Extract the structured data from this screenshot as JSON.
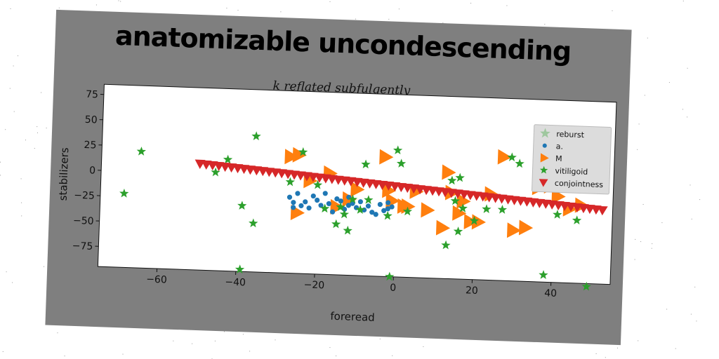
{
  "chart_data": {
    "type": "scatter",
    "title": "anatomizable uncondescending",
    "subtitle": "k reflated subfulgently",
    "xlabel": "foreread",
    "ylabel": "stabilizers",
    "xlim": [
      -75,
      55
    ],
    "ylim": [
      -95,
      85
    ],
    "xticks": [
      -60,
      -40,
      -20,
      0,
      20,
      40
    ],
    "yticks": [
      75,
      50,
      25,
      0,
      -25,
      -50,
      -75
    ],
    "grid": false,
    "legend_position": "top-right",
    "series": [
      {
        "name": "reburst",
        "marker": "star-large",
        "color": "#2ca02c",
        "x": [],
        "y": []
      },
      {
        "name": "a.",
        "marker": "circle",
        "color": "#1f77b4",
        "x": [
          -27,
          -26,
          -26,
          -25,
          -24,
          -23,
          -22,
          -21,
          -20,
          -19,
          -18,
          -17,
          -16,
          -15,
          -14,
          -13,
          -12,
          -12,
          -11,
          -10,
          -9,
          -8,
          -7,
          -6,
          -5,
          -4,
          -3,
          -2,
          -2,
          -1
        ],
        "y": [
          -20,
          -25,
          -30,
          -16,
          -28,
          -24,
          -30,
          -18,
          -22,
          -27,
          -15,
          -25,
          -33,
          -20,
          -22,
          -30,
          -18,
          -26,
          -24,
          -28,
          -22,
          -30,
          -26,
          -32,
          -34,
          -24,
          -30,
          -28,
          -22,
          -26
        ]
      },
      {
        "name": "M",
        "marker": "triangle-right",
        "color": "#ff7f0e",
        "x": [
          -27,
          -25,
          -25,
          -22,
          -17,
          -15,
          -12,
          -10,
          -3,
          -2,
          -1,
          2,
          3,
          5,
          8,
          12,
          13,
          14,
          16,
          17,
          19,
          21,
          24,
          27,
          30,
          33,
          36,
          39,
          41,
          44,
          47
        ],
        "y": [
          20,
          22,
          -35,
          -3,
          5,
          -28,
          -20,
          -10,
          23,
          -10,
          -20,
          -25,
          -25,
          -10,
          -28,
          -45,
          10,
          -10,
          -30,
          -18,
          -38,
          -38,
          -10,
          27,
          -45,
          -42,
          -2,
          0,
          -10,
          -22,
          -18
        ]
      },
      {
        "name": "vitiligoid",
        "marker": "star",
        "color": "#2ca02c",
        "x": [
          -69,
          -65,
          -46,
          -43,
          -39,
          -39,
          -36,
          -36,
          -27,
          -24,
          -20,
          -18,
          -15,
          -14,
          -13,
          -12,
          -11,
          -9,
          -8,
          -7,
          -2,
          -1,
          0,
          1,
          3,
          13,
          14,
          15,
          16,
          16,
          17,
          20,
          23,
          27,
          29,
          31,
          38,
          41,
          46,
          49
        ],
        "y": [
          -22,
          20,
          2,
          15,
          -30,
          -93,
          -47,
          39,
          -5,
          25,
          -7,
          -30,
          -45,
          -28,
          -35,
          -51,
          -20,
          -30,
          15,
          -20,
          -35,
          -95,
          30,
          17,
          -30,
          -62,
          2,
          -18,
          -48,
          5,
          -25,
          -37,
          -25,
          -25,
          27,
          21,
          -88,
          -28,
          -33,
          -98
        ]
      },
      {
        "name": "conjointness",
        "marker": "triangle-down",
        "color": "#d62728",
        "x": [
          -50,
          -48.4,
          -46.8,
          -45.2,
          -43.6,
          -42,
          -40.4,
          -38.8,
          -37.2,
          -35.6,
          -34,
          -32.4,
          -30.8,
          -29.2,
          -27.6,
          -26,
          -24.4,
          -22.8,
          -21.2,
          -19.6,
          -18,
          -16.4,
          -14.8,
          -13.2,
          -11.6,
          -10,
          -8.4,
          -6.8,
          -5.2,
          -3.6,
          -2,
          -0.4,
          1.2,
          2.8,
          4.4,
          6,
          7.6,
          9.2,
          10.8,
          12.4,
          14,
          15.6,
          17.2,
          18.8,
          20.4,
          22,
          23.6,
          25.2,
          26.8,
          28.4,
          30,
          31.6,
          33.2,
          34.8,
          36.4,
          38,
          39.6,
          41.2,
          42.8,
          44.4,
          46,
          47.6,
          49.2,
          50.8,
          52.4
        ],
        "y": [
          10,
          9.5,
          9,
          8.5,
          8,
          7.5,
          7,
          6.5,
          6,
          5.5,
          5,
          4.5,
          4,
          3.5,
          3,
          2.5,
          2,
          1.5,
          1,
          0.5,
          0,
          -0.5,
          -1,
          -1.5,
          -2,
          -2.5,
          -3,
          -3.5,
          -4,
          -4.5,
          -5,
          -5.5,
          -6,
          -6.5,
          -7,
          -7.5,
          -8,
          -8.5,
          -9,
          -9.5,
          -10,
          -10.5,
          -11,
          -11.5,
          -12,
          -12.5,
          -13,
          -13.5,
          -14,
          -14.5,
          -15,
          -15.5,
          -16,
          -16.5,
          -17,
          -17.5,
          -18,
          -18.5,
          -19,
          -19.5,
          -20,
          -20.5,
          -21,
          -21.5,
          -22
        ]
      }
    ]
  }
}
